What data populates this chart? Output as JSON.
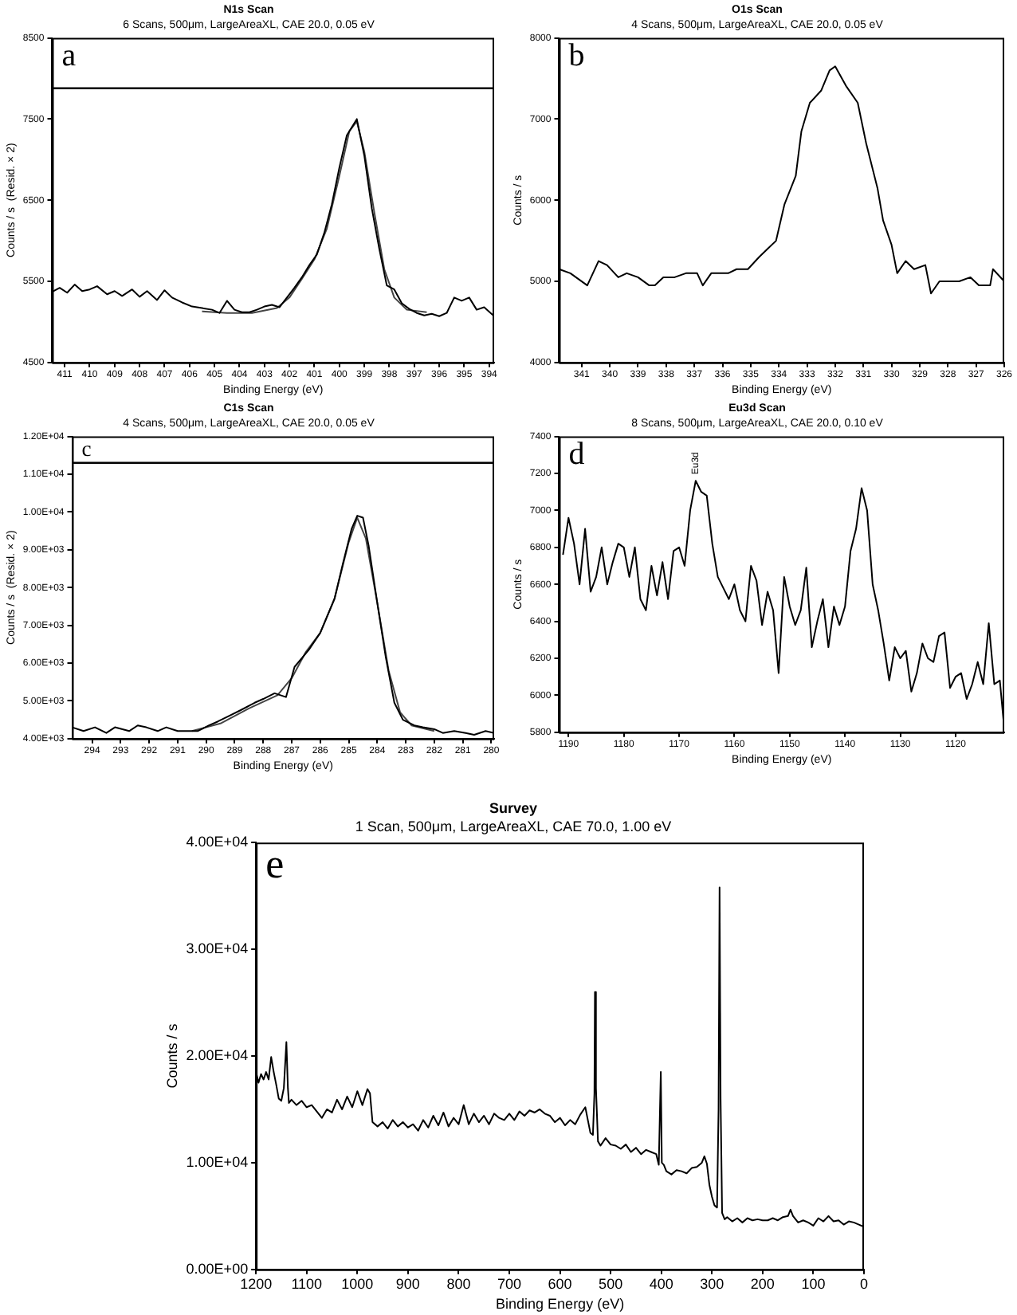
{
  "chart_data": [
    {
      "type": "line",
      "title": "N1s Scan",
      "subtitle": "6 Scans, 500μm, LargeAreaXL, CAE 20.0, 0.05 eV",
      "xlabel": "Binding Energy (eV)",
      "ylabel": "Counts / s  (Resid. × 2)",
      "xlim": [
        411.5,
        393.8
      ],
      "xticks": [
        411,
        410,
        409,
        408,
        407,
        406,
        405,
        404,
        403,
        402,
        401,
        400,
        399,
        398,
        397,
        396,
        395,
        394
      ],
      "ylim": [
        4500,
        8500
      ],
      "yticks": [
        4500,
        5500,
        6500,
        7500,
        8500
      ],
      "ref_lines": [
        {
          "axis": "y",
          "value": 7880,
          "color": "#000000"
        }
      ],
      "annotations": [
        "a"
      ],
      "series": [
        {
          "color": "#000000",
          "x": [
            411.5,
            411.2,
            410.9,
            410.6,
            410.3,
            410.0,
            409.7,
            409.3,
            409.0,
            408.7,
            408.3,
            408.0,
            407.7,
            407.3,
            407.0,
            406.7,
            406.3,
            405.9,
            405.5,
            405.1,
            404.8,
            404.5,
            404.2,
            403.9,
            403.6,
            403.3,
            403.0,
            402.7,
            402.4,
            402.1,
            401.8,
            401.5,
            401.2,
            400.9,
            400.6,
            400.3,
            400.0,
            399.7,
            399.3,
            399.0,
            398.7,
            398.4,
            398.1,
            397.8,
            397.5,
            397.2,
            396.9,
            396.6,
            396.3,
            396.0,
            395.7,
            395.4,
            395.1,
            394.8,
            394.5,
            394.2,
            393.8
          ],
          "values": [
            5370,
            5420,
            5360,
            5460,
            5380,
            5400,
            5440,
            5340,
            5380,
            5320,
            5400,
            5310,
            5380,
            5270,
            5390,
            5300,
            5240,
            5190,
            5170,
            5150,
            5110,
            5260,
            5150,
            5120,
            5120,
            5150,
            5190,
            5210,
            5180,
            5300,
            5420,
            5550,
            5700,
            5830,
            6100,
            6450,
            6900,
            7300,
            7500,
            7050,
            6400,
            5900,
            5450,
            5400,
            5230,
            5160,
            5110,
            5080,
            5100,
            5070,
            5110,
            5300,
            5260,
            5300,
            5150,
            5180,
            5070
          ]
        },
        {
          "color": "#444444",
          "x": [
            405.5,
            404.5,
            403.5,
            402.5,
            402.0,
            401.5,
            401.0,
            400.5,
            400.0,
            399.6,
            399.3,
            399.0,
            398.6,
            398.2,
            397.8,
            397.3,
            396.5
          ],
          "values": [
            5130,
            5110,
            5110,
            5170,
            5300,
            5530,
            5770,
            6150,
            6800,
            7350,
            7470,
            7100,
            6350,
            5650,
            5300,
            5150,
            5120
          ]
        }
      ]
    },
    {
      "type": "line",
      "title": "O1s Scan",
      "subtitle": "4 Scans, 500μm, LargeAreaXL, CAE 20.0, 0.05 eV",
      "xlabel": "Binding Energy (eV)",
      "ylabel": "Counts / s",
      "xlim": [
        341.8,
        326
      ],
      "xticks": [
        341,
        340,
        339,
        338,
        337,
        336,
        335,
        334,
        333,
        332,
        331,
        330,
        329,
        328,
        327,
        326
      ],
      "ylim": [
        4000,
        8000
      ],
      "yticks": [
        4000,
        5000,
        6000,
        7000,
        8000
      ],
      "annotations": [
        "b"
      ],
      "series": [
        {
          "color": "#000000",
          "x": [
            341.8,
            341.4,
            340.8,
            340.4,
            340.1,
            339.7,
            339.4,
            339.0,
            338.6,
            338.4,
            338.1,
            337.7,
            337.3,
            336.9,
            336.7,
            336.4,
            335.8,
            335.5,
            335.1,
            334.7,
            334.4,
            334.1,
            333.8,
            333.4,
            333.2,
            332.9,
            332.5,
            332.2,
            332.0,
            331.6,
            331.2,
            330.9,
            330.5,
            330.3,
            330.0,
            329.8,
            329.5,
            329.2,
            328.8,
            328.6,
            328.3,
            327.9,
            327.6,
            327.2,
            326.9,
            326.5,
            326.4,
            326.0
          ],
          "values": [
            5150,
            5100,
            4950,
            5250,
            5200,
            5050,
            5100,
            5050,
            4950,
            4950,
            5050,
            5050,
            5100,
            5100,
            4950,
            5100,
            5100,
            5150,
            5150,
            5300,
            5400,
            5500,
            5950,
            6300,
            6850,
            7200,
            7350,
            7600,
            7650,
            7400,
            7200,
            6700,
            6150,
            5750,
            5450,
            5100,
            5250,
            5150,
            5200,
            4850,
            5000,
            5000,
            5000,
            5050,
            4950,
            4950,
            5150,
            5000
          ]
        }
      ]
    },
    {
      "type": "line",
      "title": "C1s Scan",
      "subtitle": "4 Scans, 500μm, LargeAreaXL, CAE 20.0, 0.05 eV",
      "xlabel": "Binding Energy (eV)",
      "ylabel": "Counts / s  (Resid. × 2)",
      "xlim": [
        294.7,
        279.9
      ],
      "xticks": [
        294,
        293,
        292,
        291,
        290,
        289,
        288,
        287,
        286,
        285,
        284,
        283,
        282,
        281,
        280
      ],
      "ylim": [
        4000,
        12000
      ],
      "yticks": [
        {
          "value": 4000,
          "label": "4.00E+03"
        },
        {
          "value": 5000,
          "label": "5.00E+03"
        },
        {
          "value": 6000,
          "label": "6.00E+03"
        },
        {
          "value": 7000,
          "label": "7.00E+03"
        },
        {
          "value": 8000,
          "label": "8.00E+03"
        },
        {
          "value": 9000,
          "label": "9.00E+03"
        },
        {
          "value": 10000,
          "label": "1.00E+04"
        },
        {
          "value": 11000,
          "label": "1.10E+04"
        },
        {
          "value": 12000,
          "label": "1.20E+04"
        }
      ],
      "ref_lines": [
        {
          "axis": "y",
          "value": 11300,
          "color": "#000000"
        }
      ],
      "annotations": [
        "c"
      ],
      "series": [
        {
          "color": "#000000",
          "x": [
            294.7,
            294.3,
            293.9,
            293.5,
            293.2,
            292.7,
            292.4,
            292.1,
            291.7,
            291.4,
            291.0,
            290.6,
            290.3,
            289.9,
            289.6,
            289.2,
            288.8,
            288.3,
            288.0,
            287.6,
            287.2,
            286.9,
            286.4,
            286.0,
            285.5,
            285.2,
            284.9,
            284.7,
            284.5,
            284.3,
            284.0,
            283.7,
            283.4,
            283.1,
            282.7,
            282.4,
            282.0,
            281.7,
            281.3,
            280.9,
            280.6,
            280.2,
            279.9
          ],
          "values": [
            4300,
            4200,
            4300,
            4150,
            4300,
            4200,
            4350,
            4300,
            4200,
            4300,
            4200,
            4200,
            4200,
            4350,
            4450,
            4600,
            4750,
            4950,
            5050,
            5200,
            5100,
            5900,
            6350,
            6800,
            7700,
            8650,
            9550,
            9900,
            9850,
            9100,
            7600,
            6150,
            4950,
            4500,
            4350,
            4300,
            4250,
            4150,
            4200,
            4150,
            4100,
            4200,
            4150
          ]
        },
        {
          "color": "#444444",
          "x": [
            290.5,
            289.5,
            288.5,
            287.5,
            287.0,
            286.5,
            286.0,
            285.5,
            285.0,
            284.7,
            284.4,
            284.0,
            283.6,
            283.2,
            282.8,
            282.0
          ],
          "values": [
            4200,
            4400,
            4800,
            5150,
            5600,
            6300,
            6800,
            7700,
            9200,
            9850,
            9300,
            7600,
            5800,
            4700,
            4350,
            4200
          ]
        }
      ]
    },
    {
      "type": "line",
      "title": "Eu3d Scan",
      "subtitle": "8 Scans, 500μm, LargeAreaXL, CAE 20.0, 0.10 eV",
      "xlabel": "Binding Energy (eV)",
      "ylabel": "Counts / s",
      "xlim": [
        1191.7,
        1111.2
      ],
      "xticks": [
        1190,
        1180,
        1170,
        1160,
        1150,
        1140,
        1130,
        1120
      ],
      "ylim": [
        5800,
        7400
      ],
      "yticks": [
        5800,
        6000,
        6200,
        6400,
        6600,
        6800,
        7000,
        7200,
        7400
      ],
      "annotations": [
        "d",
        {
          "text": "Eu3d",
          "x": 1167,
          "y": 7160
        }
      ],
      "series": [
        {
          "color": "#000000",
          "x": [
            1191,
            1190,
            1189,
            1188,
            1187,
            1186,
            1185,
            1184,
            1183,
            1182,
            1181,
            1180,
            1179,
            1178,
            1177,
            1176,
            1175,
            1174,
            1173,
            1172,
            1171,
            1170,
            1169,
            1168,
            1167,
            1166,
            1165,
            1164,
            1163,
            1162,
            1161,
            1160,
            1159,
            1158,
            1157,
            1156,
            1155,
            1154,
            1153,
            1152,
            1151,
            1150,
            1149,
            1148,
            1147,
            1146,
            1145,
            1144,
            1143,
            1142,
            1141,
            1140,
            1139,
            1138,
            1137,
            1136,
            1135,
            1134,
            1133,
            1132,
            1131,
            1130,
            1129,
            1128,
            1127,
            1126,
            1125,
            1124,
            1123,
            1122,
            1121,
            1120,
            1119,
            1118,
            1117,
            1116,
            1115,
            1114,
            1113,
            1112,
            1111.2
          ],
          "values": [
            6760,
            6960,
            6820,
            6600,
            6900,
            6560,
            6640,
            6800,
            6600,
            6720,
            6820,
            6800,
            6640,
            6800,
            6520,
            6460,
            6700,
            6540,
            6720,
            6520,
            6780,
            6800,
            6700,
            7000,
            7160,
            7100,
            7080,
            6820,
            6640,
            6580,
            6520,
            6600,
            6460,
            6400,
            6700,
            6620,
            6380,
            6560,
            6460,
            6120,
            6640,
            6480,
            6380,
            6460,
            6690,
            6260,
            6400,
            6520,
            6260,
            6480,
            6380,
            6480,
            6780,
            6900,
            7120,
            7000,
            6600,
            6460,
            6280,
            6080,
            6260,
            6200,
            6240,
            6020,
            6120,
            6280,
            6200,
            6180,
            6320,
            6340,
            6040,
            6100,
            6120,
            5980,
            6060,
            6180,
            6060,
            6390,
            6060,
            6080,
            5820
          ]
        }
      ]
    },
    {
      "type": "line",
      "title": "Survey",
      "subtitle": "1 Scan, 500μm, LargeAreaXL, CAE 70.0, 1.00 eV",
      "xlabel": "Binding Energy (eV)",
      "ylabel": "Counts / s",
      "xlim": [
        1200,
        0
      ],
      "xticks": [
        1200,
        1100,
        1000,
        900,
        800,
        700,
        600,
        500,
        400,
        300,
        200,
        100,
        0
      ],
      "ylim": [
        0,
        40000
      ],
      "yticks": [
        {
          "value": 0,
          "label": "0.00E+00"
        },
        {
          "value": 10000,
          "label": "1.00E+04"
        },
        {
          "value": 20000,
          "label": "2.00E+04"
        },
        {
          "value": 30000,
          "label": "3.00E+04"
        },
        {
          "value": 40000,
          "label": "4.00E+04"
        }
      ],
      "annotations": [
        "e"
      ],
      "series": [
        {
          "color": "#000000",
          "x": [
            1200,
            1195,
            1190,
            1185,
            1180,
            1175,
            1170,
            1165,
            1160,
            1155,
            1150,
            1145,
            1140,
            1137,
            1135,
            1130,
            1120,
            1110,
            1100,
            1090,
            1080,
            1070,
            1060,
            1050,
            1040,
            1030,
            1020,
            1010,
            1000,
            990,
            980,
            975,
            970,
            960,
            950,
            940,
            930,
            920,
            910,
            900,
            890,
            880,
            870,
            860,
            850,
            840,
            830,
            820,
            810,
            800,
            790,
            780,
            770,
            760,
            750,
            740,
            730,
            720,
            710,
            700,
            690,
            680,
            670,
            660,
            650,
            640,
            630,
            620,
            610,
            600,
            590,
            580,
            570,
            560,
            550,
            545,
            540,
            535,
            532,
            531,
            529,
            525,
            520,
            510,
            500,
            490,
            480,
            470,
            460,
            450,
            440,
            430,
            420,
            410,
            405,
            401,
            399,
            395,
            390,
            380,
            370,
            360,
            350,
            340,
            330,
            320,
            315,
            310,
            305,
            300,
            295,
            290,
            287,
            285,
            283,
            280,
            275,
            270,
            260,
            250,
            240,
            230,
            220,
            210,
            200,
            190,
            180,
            170,
            160,
            150,
            145,
            140,
            130,
            120,
            110,
            100,
            90,
            80,
            70,
            60,
            50,
            40,
            30,
            20,
            10,
            0
          ],
          "values": [
            18500,
            17500,
            18300,
            17800,
            18500,
            17800,
            19900,
            18500,
            17300,
            16000,
            15800,
            17000,
            21300,
            17000,
            15600,
            15900,
            15400,
            15800,
            15200,
            15400,
            14800,
            14200,
            15000,
            14700,
            15900,
            15000,
            16200,
            15200,
            16700,
            15400,
            16900,
            16500,
            13800,
            13400,
            13800,
            13200,
            14000,
            13400,
            13800,
            13300,
            13600,
            13000,
            14000,
            13300,
            14400,
            13500,
            14700,
            13400,
            14200,
            13600,
            15400,
            13600,
            14600,
            13800,
            14400,
            13600,
            14600,
            14200,
            14000,
            14600,
            14000,
            14800,
            14400,
            14900,
            14700,
            15000,
            14600,
            14400,
            13800,
            14200,
            13500,
            14000,
            13600,
            14500,
            15200,
            14000,
            12800,
            12600,
            16500,
            26000,
            17000,
            12000,
            11600,
            12300,
            11700,
            11600,
            11300,
            11700,
            11000,
            11400,
            10800,
            11200,
            11000,
            10800,
            9800,
            18500,
            10000,
            9800,
            9200,
            8900,
            9300,
            9200,
            9000,
            9500,
            9600,
            10000,
            10600,
            9900,
            7900,
            6800,
            6000,
            5800,
            15000,
            35800,
            16000,
            5300,
            4700,
            4900,
            4500,
            4800,
            4400,
            4800,
            4600,
            4700,
            4600,
            4600,
            4800,
            4600,
            4900,
            5000,
            5600,
            5000,
            4400,
            4600,
            4400,
            4100,
            4800,
            4500,
            5000,
            4500,
            4600,
            4200,
            4500,
            4400,
            4200,
            4000
          ]
        }
      ]
    }
  ]
}
